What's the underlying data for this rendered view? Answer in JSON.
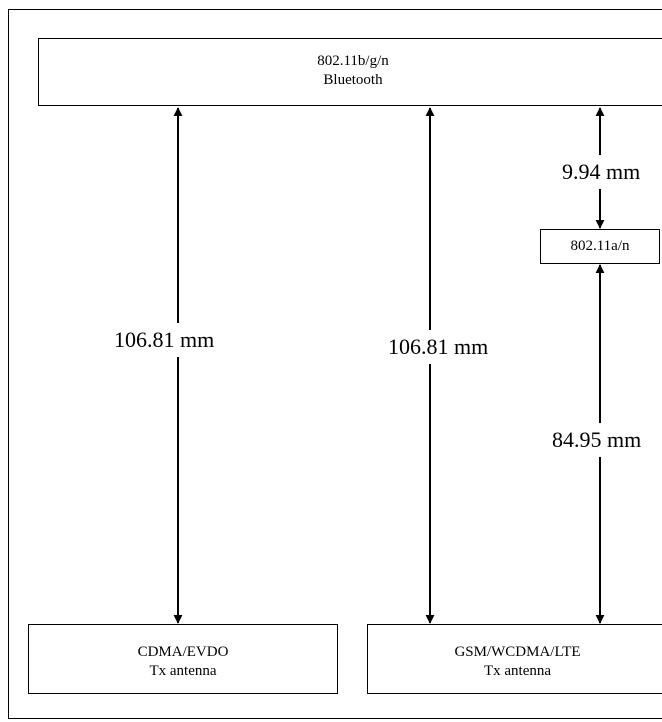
{
  "boxes": {
    "top": {
      "line1": "802.11b/g/n",
      "line2": "Bluetooth"
    },
    "mid": {
      "line1": "802.11a/n"
    },
    "left": {
      "line1": "CDMA/EVDO",
      "line2": "Tx antenna"
    },
    "right": {
      "line1": "GSM/WCDMA/LTE",
      "line2": "Tx antenna"
    }
  },
  "distances": {
    "left": "106.81 mm",
    "middle": "106.81 mm",
    "top_right": "9.94 mm",
    "bottom_right": "84.95 mm"
  }
}
